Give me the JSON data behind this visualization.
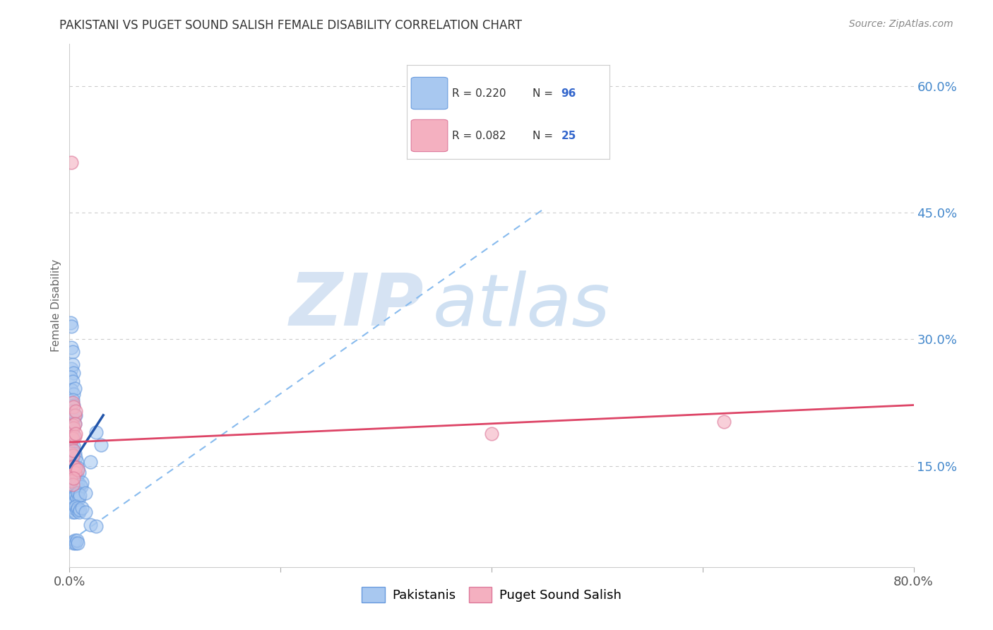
{
  "title": "PAKISTANI VS PUGET SOUND SALISH FEMALE DISABILITY CORRELATION CHART",
  "source": "Source: ZipAtlas.com",
  "ylabel": "Female Disability",
  "yticks_right": [
    "60.0%",
    "45.0%",
    "30.0%",
    "15.0%"
  ],
  "yticks_right_vals": [
    0.6,
    0.45,
    0.3,
    0.15
  ],
  "legend_label1": "Pakistanis",
  "legend_label2": "Puget Sound Salish",
  "blue_color": "#A8C8F0",
  "blue_edge_color": "#6699DD",
  "pink_color": "#F4B0C0",
  "pink_edge_color": "#DD7799",
  "blue_line_color": "#2255AA",
  "pink_line_color": "#DD4466",
  "dashed_line_color": "#88BBEE",
  "watermark_color": "#D0E4F5",
  "background_color": "#FFFFFF",
  "grid_color": "#CCCCCC",
  "blue_dots": [
    [
      0.001,
      0.32
    ],
    [
      0.002,
      0.315
    ],
    [
      0.002,
      0.29
    ],
    [
      0.003,
      0.285
    ],
    [
      0.002,
      0.265
    ],
    [
      0.003,
      0.27
    ],
    [
      0.004,
      0.26
    ],
    [
      0.001,
      0.255
    ],
    [
      0.003,
      0.25
    ],
    [
      0.002,
      0.24
    ],
    [
      0.004,
      0.235
    ],
    [
      0.005,
      0.242
    ],
    [
      0.001,
      0.225
    ],
    [
      0.003,
      0.228
    ],
    [
      0.004,
      0.222
    ],
    [
      0.002,
      0.215
    ],
    [
      0.003,
      0.21
    ],
    [
      0.004,
      0.205
    ],
    [
      0.006,
      0.21
    ],
    [
      0.001,
      0.2
    ],
    [
      0.002,
      0.198
    ],
    [
      0.003,
      0.195
    ],
    [
      0.005,
      0.2
    ],
    [
      0.001,
      0.188
    ],
    [
      0.002,
      0.185
    ],
    [
      0.003,
      0.183
    ],
    [
      0.004,
      0.186
    ],
    [
      0.001,
      0.175
    ],
    [
      0.002,
      0.172
    ],
    [
      0.003,
      0.17
    ],
    [
      0.004,
      0.174
    ],
    [
      0.001,
      0.162
    ],
    [
      0.002,
      0.16
    ],
    [
      0.003,
      0.158
    ],
    [
      0.004,
      0.162
    ],
    [
      0.005,
      0.165
    ],
    [
      0.006,
      0.16
    ],
    [
      0.001,
      0.15
    ],
    [
      0.002,
      0.148
    ],
    [
      0.003,
      0.145
    ],
    [
      0.004,
      0.15
    ],
    [
      0.005,
      0.148
    ],
    [
      0.007,
      0.155
    ],
    [
      0.008,
      0.148
    ],
    [
      0.001,
      0.138
    ],
    [
      0.002,
      0.135
    ],
    [
      0.003,
      0.132
    ],
    [
      0.004,
      0.138
    ],
    [
      0.005,
      0.135
    ],
    [
      0.006,
      0.14
    ],
    [
      0.007,
      0.138
    ],
    [
      0.009,
      0.142
    ],
    [
      0.001,
      0.125
    ],
    [
      0.002,
      0.122
    ],
    [
      0.003,
      0.12
    ],
    [
      0.004,
      0.125
    ],
    [
      0.005,
      0.122
    ],
    [
      0.006,
      0.128
    ],
    [
      0.007,
      0.125
    ],
    [
      0.008,
      0.13
    ],
    [
      0.009,
      0.122
    ],
    [
      0.01,
      0.128
    ],
    [
      0.011,
      0.125
    ],
    [
      0.012,
      0.13
    ],
    [
      0.001,
      0.112
    ],
    [
      0.002,
      0.11
    ],
    [
      0.003,
      0.108
    ],
    [
      0.004,
      0.112
    ],
    [
      0.005,
      0.108
    ],
    [
      0.006,
      0.115
    ],
    [
      0.007,
      0.112
    ],
    [
      0.008,
      0.118
    ],
    [
      0.009,
      0.112
    ],
    [
      0.01,
      0.115
    ],
    [
      0.015,
      0.118
    ],
    [
      0.002,
      0.098
    ],
    [
      0.003,
      0.095
    ],
    [
      0.004,
      0.1
    ],
    [
      0.005,
      0.095
    ],
    [
      0.006,
      0.102
    ],
    [
      0.007,
      0.098
    ],
    [
      0.008,
      0.1
    ],
    [
      0.009,
      0.095
    ],
    [
      0.01,
      0.098
    ],
    [
      0.012,
      0.1
    ],
    [
      0.015,
      0.095
    ],
    [
      0.02,
      0.155
    ],
    [
      0.025,
      0.19
    ],
    [
      0.03,
      0.175
    ],
    [
      0.02,
      0.08
    ],
    [
      0.025,
      0.078
    ],
    [
      0.003,
      0.06
    ],
    [
      0.004,
      0.058
    ],
    [
      0.005,
      0.062
    ],
    [
      0.006,
      0.058
    ],
    [
      0.007,
      0.062
    ],
    [
      0.008,
      0.058
    ]
  ],
  "pink_dots": [
    [
      0.002,
      0.51
    ],
    [
      0.003,
      0.225
    ],
    [
      0.004,
      0.22
    ],
    [
      0.005,
      0.21
    ],
    [
      0.006,
      0.215
    ],
    [
      0.003,
      0.198
    ],
    [
      0.004,
      0.195
    ],
    [
      0.005,
      0.2
    ],
    [
      0.002,
      0.185
    ],
    [
      0.003,
      0.182
    ],
    [
      0.005,
      0.185
    ],
    [
      0.006,
      0.188
    ],
    [
      0.002,
      0.165
    ],
    [
      0.003,
      0.162
    ],
    [
      0.004,
      0.168
    ],
    [
      0.002,
      0.148
    ],
    [
      0.003,
      0.145
    ],
    [
      0.004,
      0.15
    ],
    [
      0.005,
      0.142
    ],
    [
      0.006,
      0.148
    ],
    [
      0.008,
      0.145
    ],
    [
      0.002,
      0.132
    ],
    [
      0.003,
      0.128
    ],
    [
      0.004,
      0.135
    ],
    [
      0.4,
      0.188
    ],
    [
      0.62,
      0.202
    ]
  ],
  "blue_line": [
    [
      0.0,
      0.148
    ],
    [
      0.032,
      0.21
    ]
  ],
  "pink_line": [
    [
      0.0,
      0.178
    ],
    [
      0.8,
      0.222
    ]
  ],
  "dashed_line": [
    [
      0.0,
      0.06
    ],
    [
      0.45,
      0.455
    ]
  ],
  "xmin": 0.0,
  "xmax": 0.8,
  "ymin": 0.03,
  "ymax": 0.65,
  "xtick_positions": [
    0.0,
    0.2,
    0.4,
    0.6,
    0.8
  ],
  "xtick_labels": [
    "0.0%",
    "",
    "",
    "",
    "80.0%"
  ]
}
